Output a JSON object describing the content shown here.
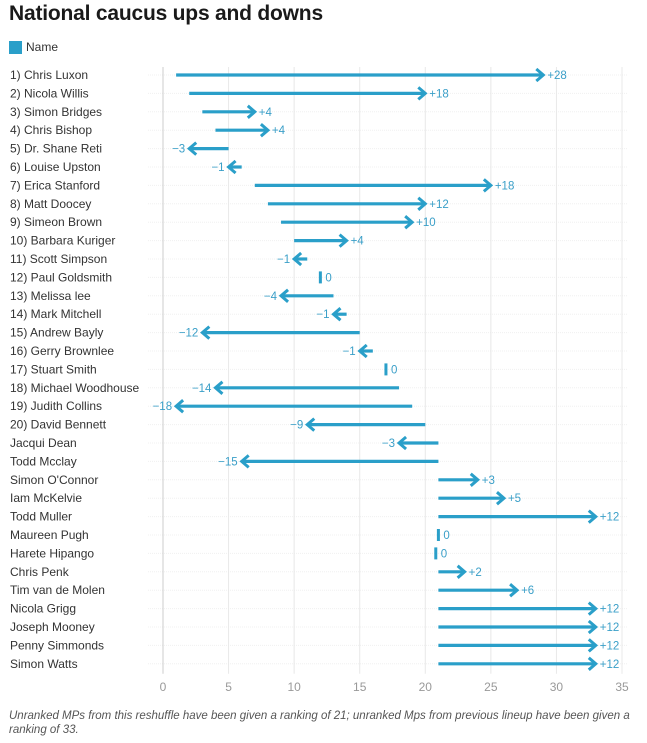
{
  "chart_data": {
    "type": "arrow",
    "title": "National caucus ups and downs",
    "legend": [
      {
        "label": "Name",
        "color": "#2a9fc9"
      }
    ],
    "xlabel": "",
    "ylabel": "",
    "xlim": [
      0,
      35
    ],
    "xticks": [
      0,
      5,
      10,
      15,
      20,
      25,
      30,
      35
    ],
    "grid": true,
    "legend_position": "top-left",
    "rows": [
      {
        "name": "1) Chris Luxon",
        "from": 1,
        "to": 29,
        "label": "+28"
      },
      {
        "name": "2) Nicola Willis",
        "from": 2,
        "to": 20,
        "label": "+18"
      },
      {
        "name": "3) Simon Bridges",
        "from": 3,
        "to": 7,
        "label": "+4"
      },
      {
        "name": "4) Chris Bishop",
        "from": 4,
        "to": 8,
        "label": "+4"
      },
      {
        "name": "5) Dr. Shane Reti",
        "from": 5,
        "to": 2,
        "label": "−3"
      },
      {
        "name": "6) Louise Upston",
        "from": 6,
        "to": 5,
        "label": "−1"
      },
      {
        "name": "7) Erica Stanford",
        "from": 7,
        "to": 25,
        "label": "+18"
      },
      {
        "name": "8) Matt Doocey",
        "from": 8,
        "to": 20,
        "label": "+12"
      },
      {
        "name": "9) Simeon Brown",
        "from": 9,
        "to": 19,
        "label": "+10"
      },
      {
        "name": "10) Barbara Kuriger",
        "from": 10,
        "to": 14,
        "label": "+4"
      },
      {
        "name": "11) Scott Simpson",
        "from": 11,
        "to": 10,
        "label": "−1"
      },
      {
        "name": "12) Paul Goldsmith",
        "from": 12,
        "to": 12,
        "label": "0"
      },
      {
        "name": "13) Melissa lee",
        "from": 13,
        "to": 9,
        "label": "−4"
      },
      {
        "name": "14) Mark Mitchell",
        "from": 14,
        "to": 13,
        "label": "−1"
      },
      {
        "name": "15) Andrew Bayly",
        "from": 15,
        "to": 3,
        "label": "−12"
      },
      {
        "name": "16) Gerry Brownlee",
        "from": 16,
        "to": 15,
        "label": "−1"
      },
      {
        "name": "17) Stuart Smith",
        "from": 17,
        "to": 17,
        "label": "0"
      },
      {
        "name": "18) Michael Woodhouse",
        "from": 18,
        "to": 4,
        "label": "−14"
      },
      {
        "name": "19) Judith Collins",
        "from": 19,
        "to": 1,
        "label": "−18"
      },
      {
        "name": "20) David Bennett",
        "from": 20,
        "to": 11,
        "label": "−9"
      },
      {
        "name": "Jacqui Dean",
        "from": 21,
        "to": 18,
        "label": "−3"
      },
      {
        "name": "Todd Mcclay",
        "from": 21,
        "to": 6,
        "label": "−15"
      },
      {
        "name": "Simon O'Connor",
        "from": 21,
        "to": 24,
        "label": "+3"
      },
      {
        "name": "Iam McKelvie",
        "from": 21,
        "to": 26,
        "label": "+5"
      },
      {
        "name": "Todd Muller",
        "from": 21,
        "to": 33,
        "label": "+12"
      },
      {
        "name": "Maureen Pugh",
        "from": 21,
        "to": 21,
        "label": "0"
      },
      {
        "name": "Harete Hipango",
        "from": 20.8,
        "to": 20.8,
        "label": "0"
      },
      {
        "name": "Chris Penk",
        "from": 21,
        "to": 23,
        "label": "+2"
      },
      {
        "name": "Tim van de Molen",
        "from": 21,
        "to": 27,
        "label": "+6"
      },
      {
        "name": "Nicola Grigg",
        "from": 21,
        "to": 33,
        "label": "+12"
      },
      {
        "name": "Joseph Mooney",
        "from": 21,
        "to": 33,
        "label": "+12"
      },
      {
        "name": "Penny Simmonds",
        "from": 21,
        "to": 33,
        "label": "+12"
      },
      {
        "name": "Simon Watts",
        "from": 21,
        "to": 33,
        "label": "+12"
      }
    ],
    "note": "Unranked MPs from this reshuffle have been given a ranking of 21; unranked Mps from previous lineup have been given a ranking of 33."
  },
  "colors": {
    "arrow": "#2a9fc9",
    "label": "#3a9fc8",
    "grid": "#e8e8e8",
    "axis": "#cccccc"
  }
}
